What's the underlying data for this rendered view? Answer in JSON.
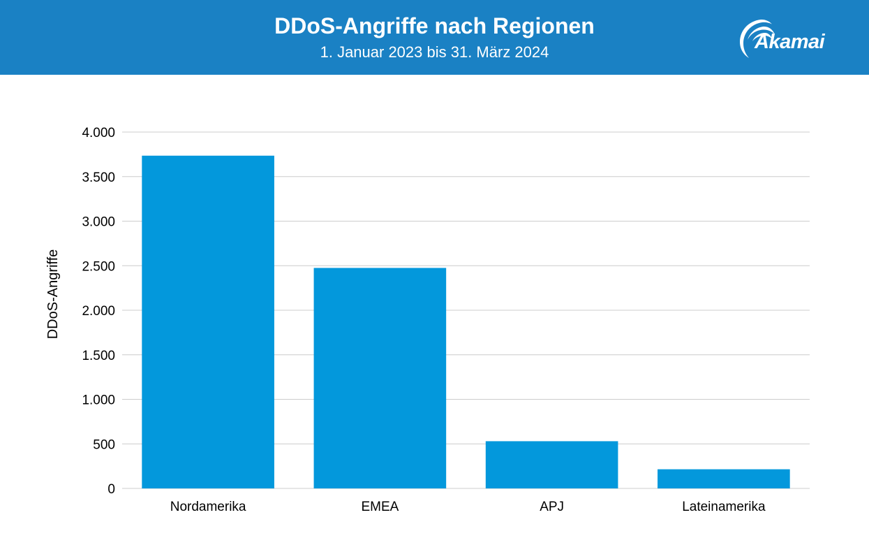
{
  "header": {
    "title": "DDoS-Angriffe nach Regionen",
    "subtitle": "1. Januar 2023 bis 31. März 2024",
    "logo_text": "Akamai",
    "background_color": "#1a81c4"
  },
  "chart_data": {
    "type": "bar",
    "title": "DDoS-Angriffe nach Regionen",
    "subtitle": "1. Januar 2023 bis 31. März 2024",
    "xlabel": "",
    "ylabel": "DDoS-Angriffe",
    "categories": [
      "Nordamerika",
      "EMEA",
      "APJ",
      "Lateinamerika"
    ],
    "values": [
      3735,
      2475,
      530,
      215
    ],
    "ylim": [
      0,
      4000
    ],
    "yticks": [
      0,
      500,
      1000,
      1500,
      2000,
      2500,
      3000,
      3500,
      4000
    ],
    "ytick_labels": [
      "0",
      "500",
      "1.000",
      "1.500",
      "2.000",
      "2.500",
      "3.000",
      "3.500",
      "4.000"
    ],
    "grid": true,
    "legend": "none",
    "bar_color": "#0398dc",
    "grid_color": "#cccccc"
  }
}
